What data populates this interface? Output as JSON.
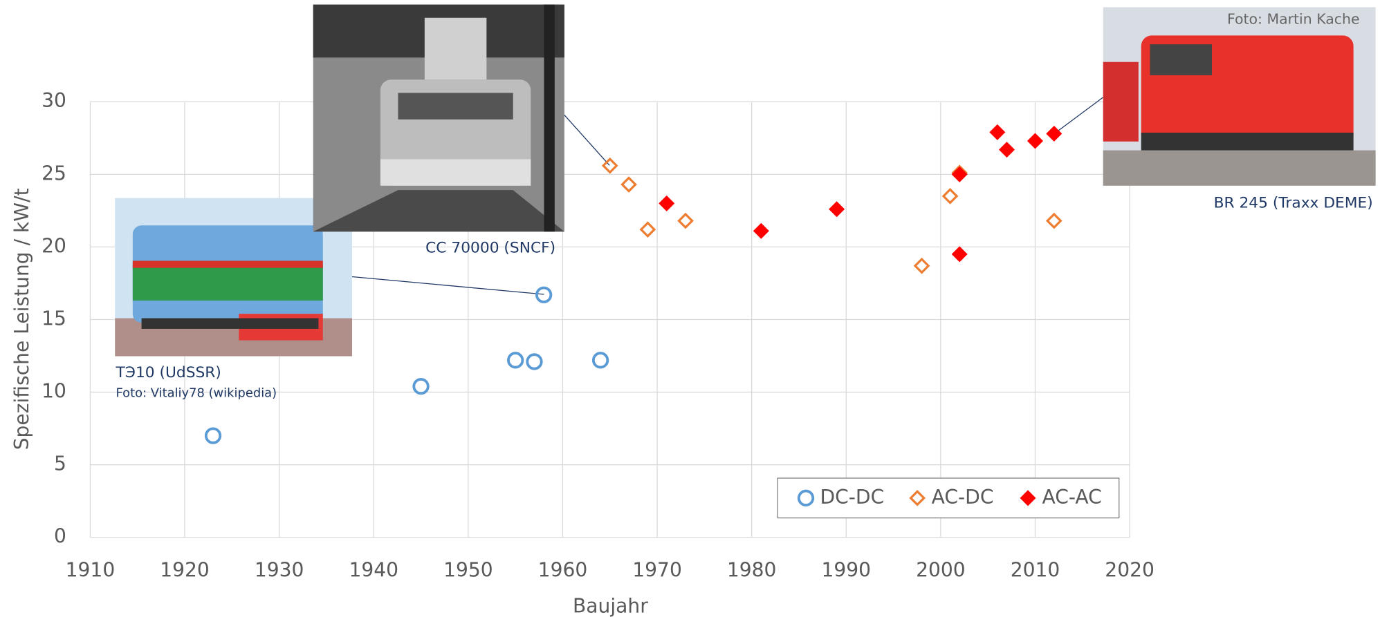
{
  "chart_data": {
    "type": "scatter",
    "x_label": "Baujahr",
    "y_label": "Spezifische Leistung / kW/t",
    "xlim": [
      1910,
      2020
    ],
    "xticks": [
      1910,
      1920,
      1930,
      1940,
      1950,
      1960,
      1970,
      1980,
      1990,
      2000,
      2010,
      2020
    ],
    "ylim": [
      0,
      30
    ],
    "yticks": [
      0,
      5,
      10,
      15,
      20,
      25,
      30
    ],
    "grid": true,
    "legend": "lower right",
    "series": [
      {
        "name": "DC-DC",
        "color": "#5b9bd5",
        "marker": "open-circle",
        "x": [
          1923,
          1945,
          1955,
          1957,
          1958,
          1964
        ],
        "values": [
          7.0,
          10.4,
          12.2,
          12.1,
          16.7,
          12.2
        ]
      },
      {
        "name": "AC-DC",
        "color": "#ed7d31",
        "marker": "open-diamond",
        "x": [
          1965,
          1967,
          1969,
          1973,
          1998,
          2001,
          2002,
          2012
        ],
        "values": [
          25.6,
          24.3,
          21.2,
          21.8,
          18.7,
          23.5,
          25.1,
          21.8
        ]
      },
      {
        "name": "AC-AC",
        "color": "#ff0000",
        "marker": "filled-diamond",
        "x": [
          1971,
          1981,
          1989,
          2002,
          2002,
          2006,
          2007,
          2010,
          2012
        ],
        "values": [
          23.0,
          21.1,
          22.6,
          25.0,
          19.5,
          27.9,
          26.7,
          27.3,
          27.8
        ]
      }
    ],
    "annotations": [
      "CC 70000 (SNCF)",
      "ТЭ10 (UdSSR)",
      "Foto: Vitaliy78 (wikipedia)",
      "BR 245 (Traxx DEME)",
      "Foto: Martin Kache"
    ]
  }
}
